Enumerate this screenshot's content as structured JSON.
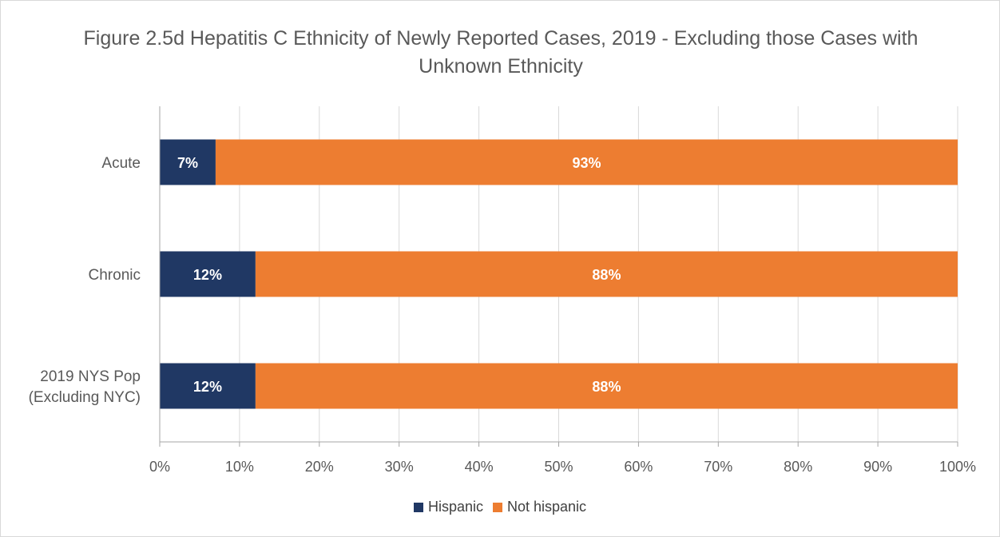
{
  "chart_data": {
    "type": "bar",
    "orientation": "horizontal",
    "stacked": true,
    "title": "Figure 2.5d Hepatitis C Ethnicity of Newly Reported Cases, 2019 - Excluding those Cases with Unknown Ethnicity",
    "categories": [
      "Acute",
      "Chronic",
      "2019 NYS Pop (Excluding NYC)"
    ],
    "category_lines": [
      [
        "Acute"
      ],
      [
        "Chronic"
      ],
      [
        "2019 NYS Pop",
        "(Excluding NYC)"
      ]
    ],
    "series": [
      {
        "name": "Hispanic",
        "values": [
          7,
          12,
          12
        ],
        "labels": [
          "7%",
          "12%",
          "12%"
        ],
        "color": "#203864"
      },
      {
        "name": "Not hispanic",
        "values": [
          93,
          88,
          88
        ],
        "labels": [
          "93%",
          "88%",
          "88%"
        ],
        "color": "#ed7d31"
      }
    ],
    "xlim": [
      0,
      100
    ],
    "xticks": [
      "0%",
      "10%",
      "20%",
      "30%",
      "40%",
      "50%",
      "60%",
      "70%",
      "80%",
      "90%",
      "100%"
    ],
    "grid": true,
    "legend_position": "bottom"
  }
}
